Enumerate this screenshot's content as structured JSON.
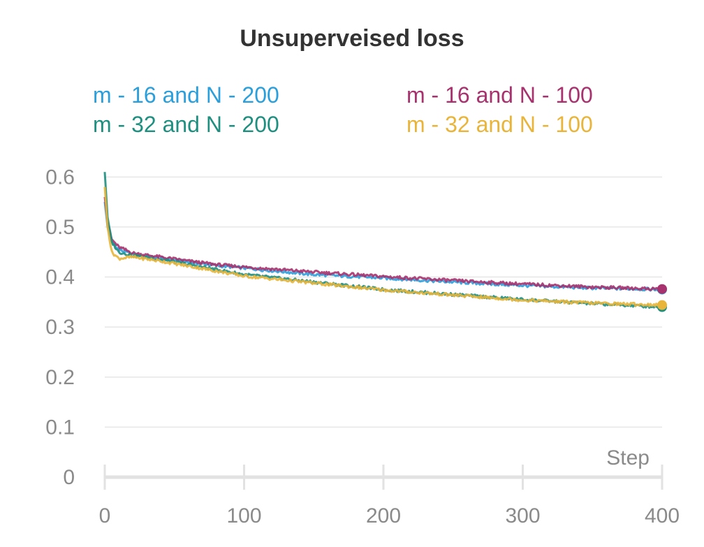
{
  "chart_data": {
    "type": "line",
    "title": "Unsuperveised loss",
    "xlabel": "Step",
    "ylabel": "",
    "xlim": [
      0,
      400
    ],
    "ylim": [
      0,
      0.62
    ],
    "x_ticks": [
      0,
      100,
      200,
      300,
      400
    ],
    "y_ticks": [
      0,
      0.1,
      0.2,
      0.3,
      0.4,
      0.5,
      0.6
    ],
    "y_tick_labels": [
      "0",
      "0.1",
      "0.2",
      "0.3",
      "0.4",
      "0.5",
      "0.6"
    ],
    "x_tick_labels": [
      "0",
      "100",
      "200",
      "300",
      "400"
    ],
    "grid": true,
    "legend_position": "top",
    "series": [
      {
        "name": "m - 16 and N - 200",
        "color": "#2b9fdb",
        "x": [
          0,
          2,
          5,
          10,
          20,
          40,
          60,
          80,
          100,
          150,
          200,
          250,
          300,
          350,
          400
        ],
        "y": [
          0.55,
          0.5,
          0.47,
          0.455,
          0.445,
          0.437,
          0.43,
          0.423,
          0.418,
          0.405,
          0.398,
          0.39,
          0.383,
          0.378,
          0.375
        ]
      },
      {
        "name": "m - 16 and N - 100",
        "color": "#a8326e",
        "x": [
          0,
          2,
          5,
          10,
          20,
          40,
          60,
          80,
          100,
          150,
          200,
          250,
          300,
          350,
          400
        ],
        "y": [
          0.56,
          0.51,
          0.475,
          0.46,
          0.448,
          0.44,
          0.432,
          0.425,
          0.42,
          0.41,
          0.401,
          0.393,
          0.386,
          0.38,
          0.376
        ]
      },
      {
        "name": "m - 32 and N - 200",
        "color": "#1f8f7f",
        "x": [
          0,
          2,
          5,
          10,
          20,
          40,
          60,
          80,
          100,
          150,
          200,
          250,
          300,
          350,
          400
        ],
        "y": [
          0.61,
          0.52,
          0.47,
          0.45,
          0.443,
          0.435,
          0.425,
          0.415,
          0.405,
          0.39,
          0.375,
          0.365,
          0.355,
          0.347,
          0.34
        ]
      },
      {
        "name": "m - 32 and N - 100",
        "color": "#e8b53a",
        "x": [
          0,
          2,
          5,
          10,
          20,
          40,
          60,
          80,
          100,
          150,
          200,
          250,
          300,
          350,
          400
        ],
        "y": [
          0.58,
          0.5,
          0.45,
          0.437,
          0.44,
          0.432,
          0.422,
          0.412,
          0.402,
          0.388,
          0.374,
          0.364,
          0.354,
          0.348,
          0.344
        ]
      }
    ]
  }
}
